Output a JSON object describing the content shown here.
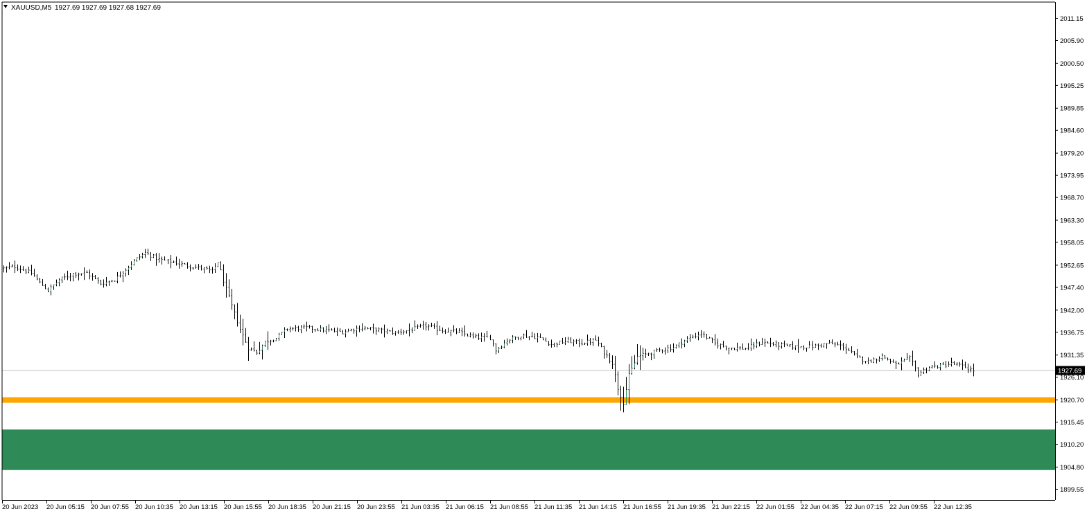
{
  "header": {
    "symbol": "XAUUSD,M5",
    "ohlc": "1927.69 1927.69 1927.68 1927.69"
  },
  "current_price_label": "1927.69",
  "colors": {
    "background": "#ffffff",
    "axis": "#000000",
    "candle": "#000000",
    "bull_candle": "#2e8b57",
    "current_line": "#c0c0c0",
    "support_line": "#ffa500",
    "demand_zone": "#2e8b57",
    "price_box": "#000000",
    "price_box_text": "#ffffff"
  },
  "chart_data": {
    "type": "candlestick",
    "symbol": "XAUUSD",
    "timeframe": "M5",
    "ylim": [
      1897.0,
      2015.0
    ],
    "y_ticks": [
      "2011.15",
      "2005.90",
      "2000.50",
      "1995.25",
      "1989.85",
      "1984.60",
      "1979.20",
      "1973.95",
      "1968.70",
      "1963.30",
      "1958.05",
      "1952.65",
      "1947.40",
      "1942.00",
      "1936.75",
      "1931.35",
      "1926.10",
      "1920.70",
      "1915.45",
      "1910.20",
      "1904.80",
      "1899.55"
    ],
    "x_ticks": [
      "20 Jun 2023",
      "20 Jun 05:15",
      "20 Jun 07:55",
      "20 Jun 10:35",
      "20 Jun 13:15",
      "20 Jun 15:55",
      "20 Jun 18:35",
      "20 Jun 21:15",
      "20 Jun 23:55",
      "21 Jun 03:35",
      "21 Jun 06:15",
      "21 Jun 08:55",
      "21 Jun 11:35",
      "21 Jun 14:15",
      "21 Jun 16:55",
      "21 Jun 19:35",
      "21 Jun 22:15",
      "22 Jun 01:55",
      "22 Jun 04:35",
      "22 Jun 07:15",
      "22 Jun 09:55",
      "22 Jun 12:35"
    ],
    "candle_count": 350,
    "close_path": [
      [
        0,
        1951.8
      ],
      [
        10,
        1952.3
      ],
      [
        22,
        1950.8
      ],
      [
        28,
        1948.5
      ],
      [
        34,
        1946.6
      ],
      [
        42,
        1949.2
      ],
      [
        52,
        1950.6
      ],
      [
        62,
        1950.8
      ],
      [
        72,
        1948.3
      ],
      [
        82,
        1949.2
      ],
      [
        90,
        1951.7
      ],
      [
        98,
        1954.2
      ],
      [
        104,
        1955.6
      ],
      [
        114,
        1954.0
      ],
      [
        124,
        1953.4
      ],
      [
        134,
        1952.5
      ],
      [
        146,
        1951.8
      ],
      [
        152,
        1951.2
      ],
      [
        156,
        1953.4
      ],
      [
        160,
        1949.0
      ],
      [
        166,
        1943.0
      ],
      [
        172,
        1937.5
      ],
      [
        178,
        1933.0
      ],
      [
        184,
        1932.0
      ],
      [
        190,
        1934.5
      ],
      [
        198,
        1935.4
      ],
      [
        206,
        1937.6
      ],
      [
        220,
        1937.8
      ],
      [
        232,
        1937.3
      ],
      [
        246,
        1936.8
      ],
      [
        258,
        1937.8
      ],
      [
        270,
        1937.4
      ],
      [
        284,
        1936.6
      ],
      [
        298,
        1937.6
      ],
      [
        306,
        1938.3
      ],
      [
        318,
        1937.2
      ],
      [
        330,
        1936.8
      ],
      [
        340,
        1935.6
      ],
      [
        352,
        1935.4
      ],
      [
        356,
        1932.5
      ],
      [
        364,
        1934.8
      ],
      [
        374,
        1936.0
      ],
      [
        386,
        1935.6
      ],
      [
        396,
        1933.9
      ],
      [
        408,
        1934.7
      ],
      [
        418,
        1934.2
      ],
      [
        428,
        1934.9
      ],
      [
        434,
        1932.0
      ],
      [
        440,
        1929.5
      ],
      [
        444,
        1923.5
      ],
      [
        448,
        1920.0
      ],
      [
        452,
        1926.5
      ],
      [
        458,
        1931.0
      ],
      [
        464,
        1931.5
      ],
      [
        474,
        1932.5
      ],
      [
        484,
        1933.2
      ],
      [
        494,
        1935.1
      ],
      [
        504,
        1936.5
      ],
      [
        514,
        1934.1
      ],
      [
        524,
        1933.1
      ],
      [
        536,
        1932.9
      ],
      [
        548,
        1934.4
      ],
      [
        560,
        1933.7
      ],
      [
        572,
        1933.3
      ],
      [
        584,
        1933.4
      ],
      [
        596,
        1934.1
      ],
      [
        606,
        1933.4
      ],
      [
        616,
        1930.8
      ],
      [
        624,
        1929.8
      ],
      [
        634,
        1931.1
      ],
      [
        644,
        1929.1
      ],
      [
        654,
        1930.6
      ],
      [
        660,
        1926.9
      ],
      [
        668,
        1928.5
      ],
      [
        676,
        1928.8
      ],
      [
        684,
        1929.3
      ],
      [
        692,
        1928.7
      ],
      [
        700,
        1927.69
      ]
    ]
  },
  "levels": {
    "support_line": {
      "price": 1920.7
    },
    "demand_zone": {
      "high": 1913.7,
      "low": 1904.1
    }
  }
}
